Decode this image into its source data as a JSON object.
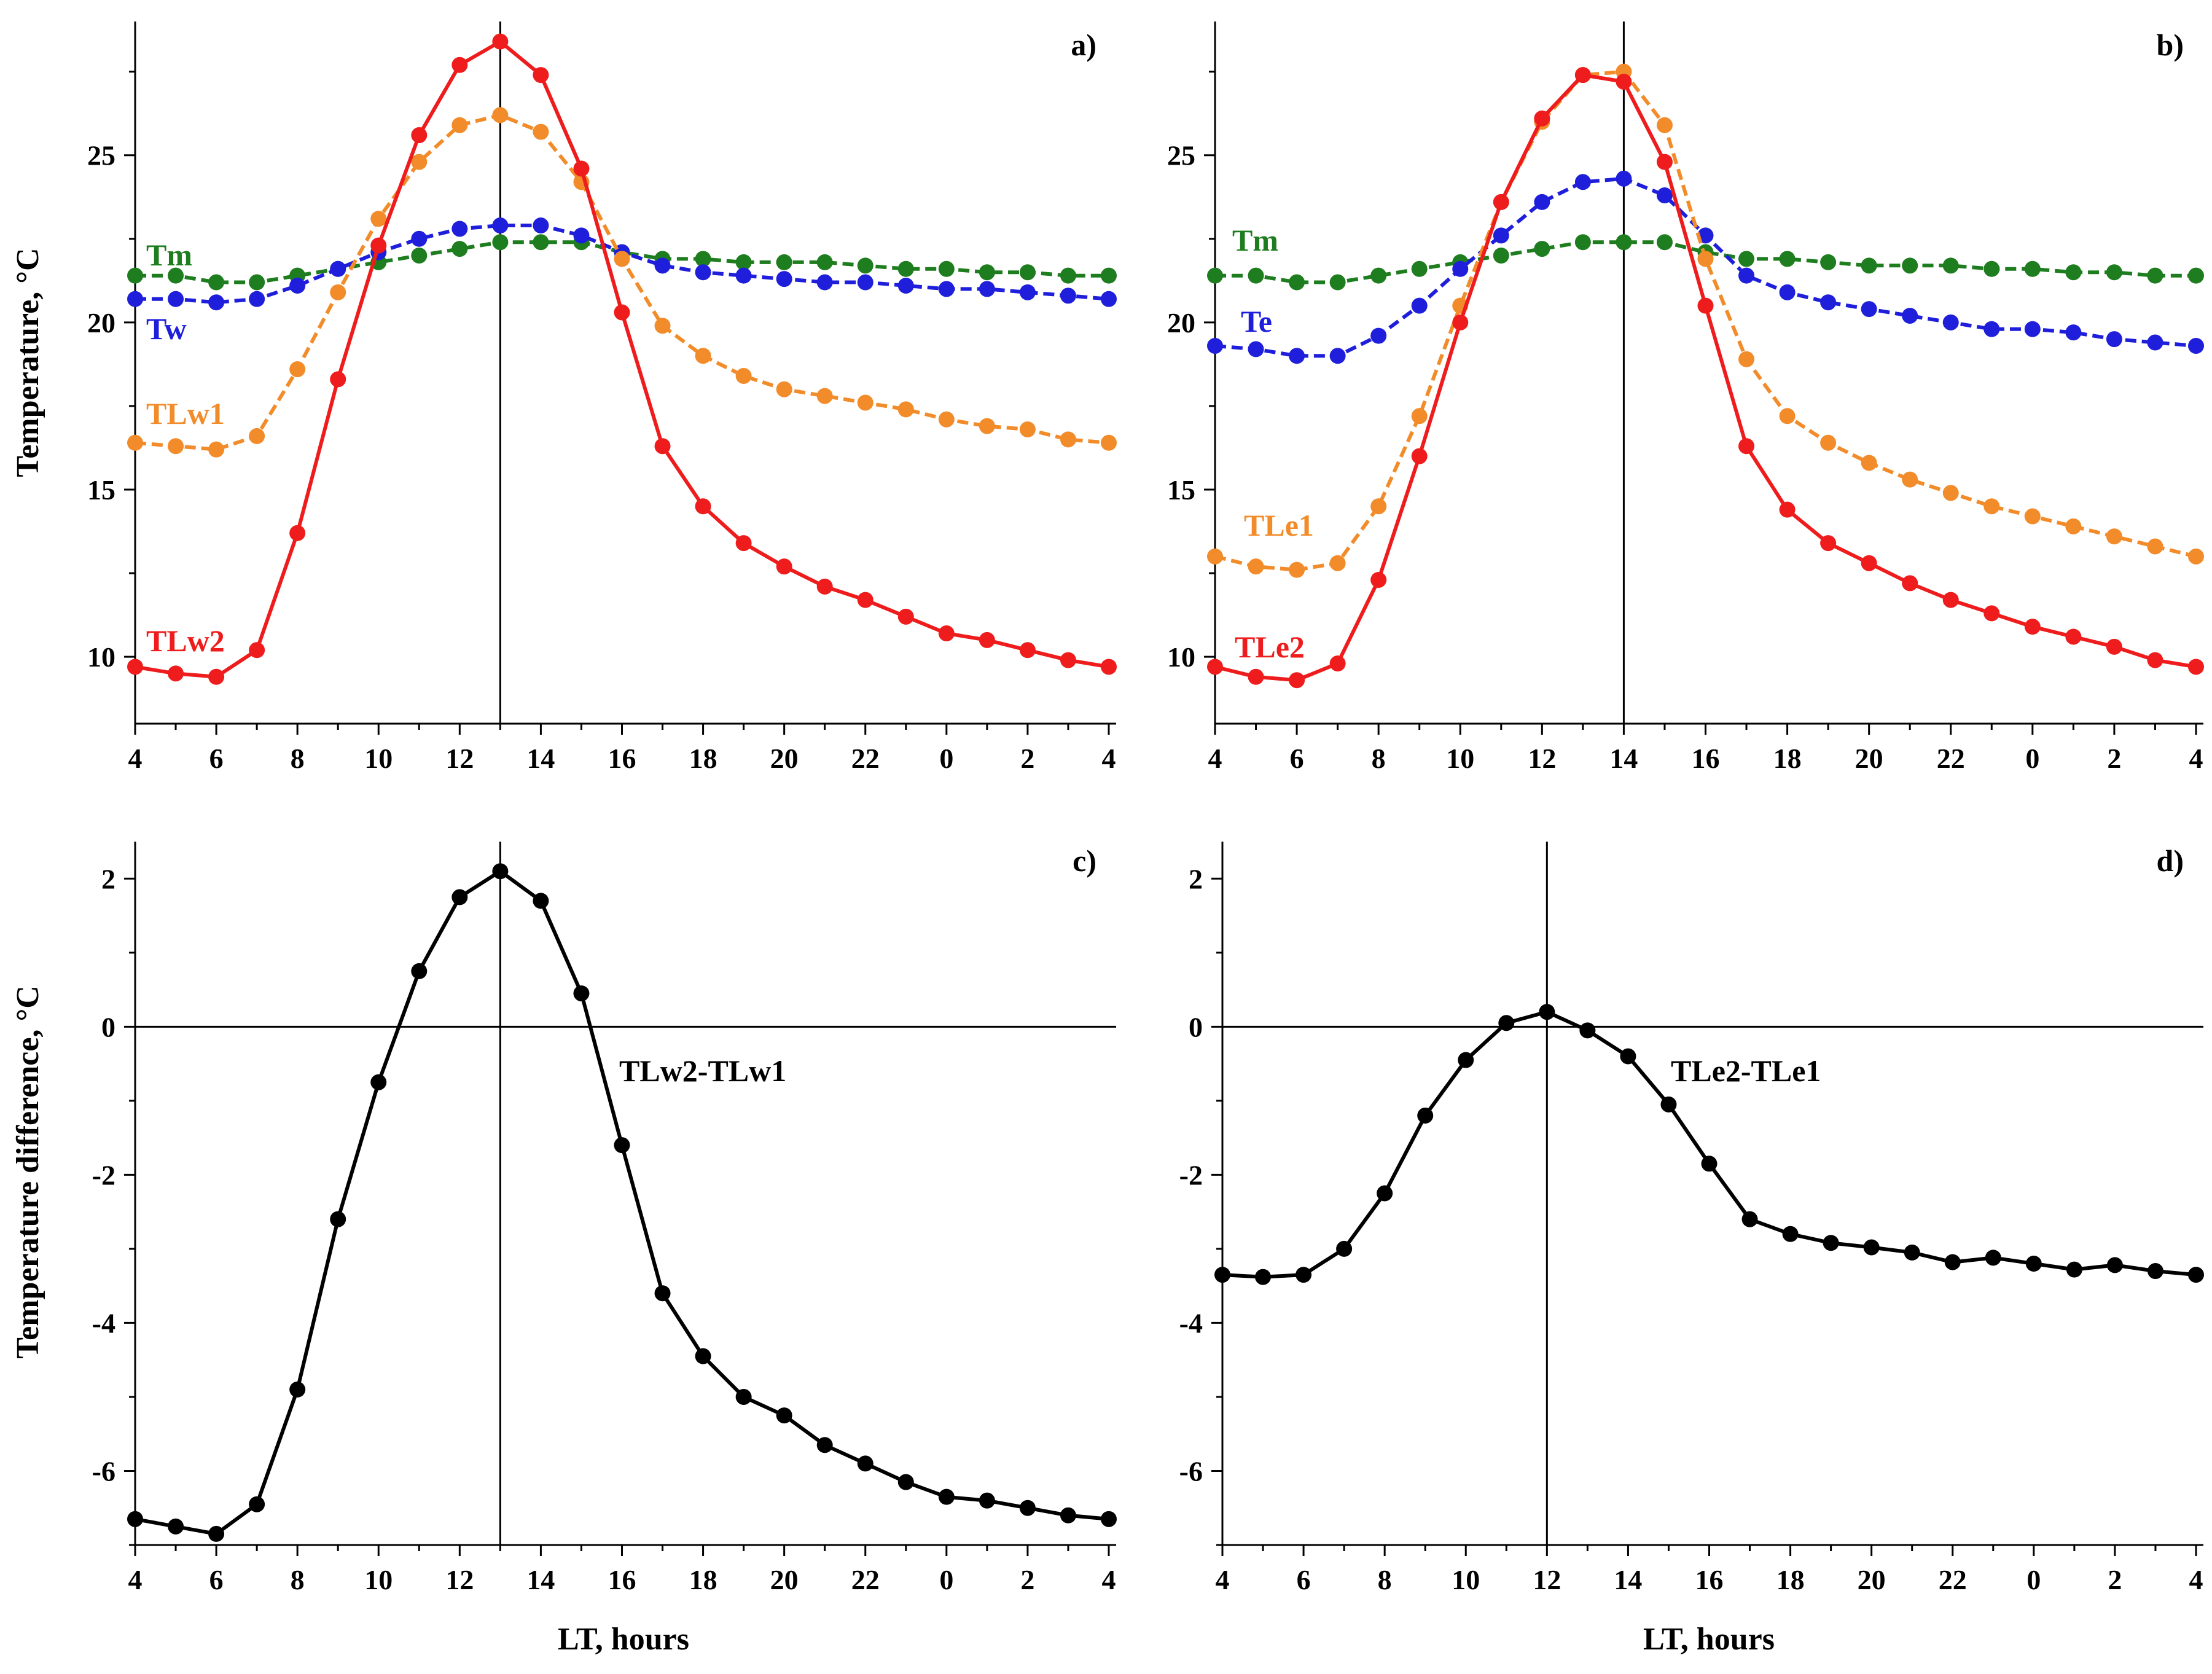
{
  "figure": {
    "ylabel_top": "Temperature,  °C",
    "ylabel_bottom": "Temperature  difference,  °C",
    "xlabel": "LT,  hours"
  },
  "chart_data": [
    {
      "id": "a",
      "panel_label": "a)",
      "type": "line",
      "x_tick_labels": [
        "4",
        "6",
        "8",
        "10",
        "12",
        "14",
        "16",
        "18",
        "20",
        "22",
        "0",
        "2",
        "4"
      ],
      "xlim": [
        0,
        24
      ],
      "ylim": [
        8,
        29
      ],
      "y_ticks": [
        10,
        15,
        20,
        25
      ],
      "vline_x": 9,
      "series": [
        {
          "name": "Tm",
          "color": "#1e7d1e",
          "dashed": true,
          "values": [
            21.4,
            21.4,
            21.2,
            21.2,
            21.4,
            21.6,
            21.8,
            22.0,
            22.2,
            22.4,
            22.4,
            22.4,
            22.1,
            21.9,
            21.9,
            21.8,
            21.8,
            21.8,
            21.7,
            21.6,
            21.6,
            21.5,
            21.5,
            21.4,
            21.4
          ]
        },
        {
          "name": "Tw",
          "color": "#1f1fdb",
          "dashed": true,
          "values": [
            20.7,
            20.7,
            20.6,
            20.7,
            21.1,
            21.6,
            22.1,
            22.5,
            22.8,
            22.9,
            22.9,
            22.6,
            22.1,
            21.7,
            21.5,
            21.4,
            21.3,
            21.2,
            21.2,
            21.1,
            21.0,
            21.0,
            20.9,
            20.8,
            20.7
          ]
        },
        {
          "name": "TLw1",
          "color": "#f28c2a",
          "dashed": true,
          "values": [
            16.4,
            16.3,
            16.2,
            16.6,
            18.6,
            20.9,
            23.1,
            24.8,
            25.9,
            26.2,
            25.7,
            24.2,
            21.9,
            19.9,
            19.0,
            18.4,
            18.0,
            17.8,
            17.6,
            17.4,
            17.1,
            16.9,
            16.8,
            16.5,
            16.4
          ]
        },
        {
          "name": "TLw2",
          "color": "#ee1c1c",
          "dashed": false,
          "values": [
            9.7,
            9.5,
            9.4,
            10.2,
            13.7,
            18.3,
            22.3,
            25.6,
            27.7,
            28.4,
            27.4,
            24.6,
            20.3,
            16.3,
            14.5,
            13.4,
            12.7,
            12.1,
            11.7,
            11.2,
            10.7,
            10.5,
            10.2,
            9.9,
            9.7
          ]
        }
      ]
    },
    {
      "id": "b",
      "panel_label": "b)",
      "type": "line",
      "x_tick_labels": [
        "4",
        "6",
        "8",
        "10",
        "12",
        "14",
        "16",
        "18",
        "20",
        "22",
        "0",
        "2",
        "4"
      ],
      "xlim": [
        0,
        24
      ],
      "ylim": [
        8,
        29
      ],
      "y_ticks": [
        10,
        15,
        20,
        25
      ],
      "vline_x": 10,
      "series": [
        {
          "name": "Tm",
          "color": "#1e7d1e",
          "dashed": true,
          "values": [
            21.4,
            21.4,
            21.2,
            21.2,
            21.4,
            21.6,
            21.8,
            22.0,
            22.2,
            22.4,
            22.4,
            22.4,
            22.1,
            21.9,
            21.9,
            21.8,
            21.7,
            21.7,
            21.7,
            21.6,
            21.6,
            21.5,
            21.5,
            21.4,
            21.4
          ]
        },
        {
          "name": "Te",
          "color": "#1f1fdb",
          "dashed": true,
          "values": [
            19.3,
            19.2,
            19.0,
            19.0,
            19.6,
            20.5,
            21.6,
            22.6,
            23.6,
            24.2,
            24.3,
            23.8,
            22.6,
            21.4,
            20.9,
            20.6,
            20.4,
            20.2,
            20.0,
            19.8,
            19.8,
            19.7,
            19.5,
            19.4,
            19.3
          ]
        },
        {
          "name": "TLe1",
          "color": "#f28c2a",
          "dashed": true,
          "values": [
            13.0,
            12.7,
            12.6,
            12.8,
            14.5,
            17.2,
            20.5,
            23.6,
            26.0,
            27.4,
            27.5,
            25.9,
            21.9,
            18.9,
            17.2,
            16.4,
            15.8,
            15.3,
            14.9,
            14.5,
            14.2,
            13.9,
            13.6,
            13.3,
            13.0
          ]
        },
        {
          "name": "TLe2",
          "color": "#ee1c1c",
          "dashed": false,
          "values": [
            9.7,
            9.4,
            9.3,
            9.8,
            12.3,
            16.0,
            20.0,
            23.6,
            26.1,
            27.4,
            27.2,
            24.8,
            20.5,
            16.3,
            14.4,
            13.4,
            12.8,
            12.2,
            11.7,
            11.3,
            10.9,
            10.6,
            10.3,
            9.9,
            9.7
          ]
        }
      ]
    },
    {
      "id": "c",
      "panel_label": "c)",
      "type": "line",
      "x_tick_labels": [
        "4",
        "6",
        "8",
        "10",
        "12",
        "14",
        "16",
        "18",
        "20",
        "22",
        "0",
        "2",
        "4"
      ],
      "xlim": [
        0,
        24
      ],
      "ylim": [
        -7,
        2.5
      ],
      "y_ticks": [
        -6,
        -4,
        -2,
        0,
        2
      ],
      "vline_x": 9,
      "hline_y": 0,
      "series": [
        {
          "name": "TLw2-TLw1",
          "color": "#000000",
          "dashed": false,
          "values": [
            -6.65,
            -6.75,
            -6.85,
            -6.45,
            -4.9,
            -2.6,
            -0.75,
            0.75,
            1.75,
            2.1,
            1.7,
            0.45,
            -1.6,
            -3.6,
            -4.45,
            -5.0,
            -5.25,
            -5.65,
            -5.9,
            -6.15,
            -6.35,
            -6.4,
            -6.5,
            -6.6,
            -6.65
          ]
        }
      ]
    },
    {
      "id": "d",
      "panel_label": "d)",
      "type": "line",
      "x_tick_labels": [
        "4",
        "6",
        "8",
        "10",
        "12",
        "14",
        "16",
        "18",
        "20",
        "22",
        "0",
        "2",
        "4"
      ],
      "xlim": [
        0,
        24
      ],
      "ylim": [
        -7,
        2.5
      ],
      "y_ticks": [
        -6,
        -4,
        -2,
        0,
        2
      ],
      "vline_x": 8,
      "hline_y": 0,
      "series": [
        {
          "name": "TLe2-TLe1",
          "color": "#000000",
          "dashed": false,
          "values": [
            -3.35,
            -3.38,
            -3.35,
            -3.0,
            -2.25,
            -1.2,
            -0.45,
            0.05,
            0.2,
            -0.05,
            -0.4,
            -1.05,
            -1.85,
            -2.6,
            -2.8,
            -2.92,
            -2.98,
            -3.05,
            -3.18,
            -3.12,
            -3.2,
            -3.28,
            -3.22,
            -3.3,
            -3.35
          ]
        }
      ]
    }
  ]
}
